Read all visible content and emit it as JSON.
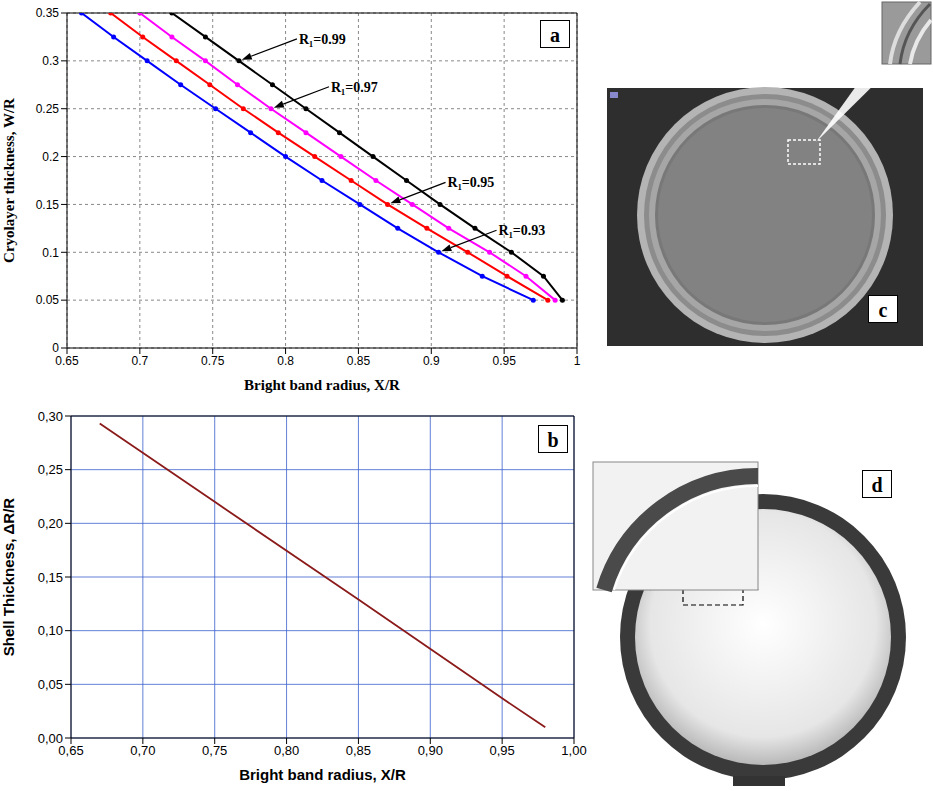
{
  "chart_data": [
    {
      "type": "line",
      "panel": "a",
      "xlabel": "Bright band radius, X/R",
      "ylabel": "Cryolayer thickness,  W/R",
      "xlim": [
        0.65,
        1
      ],
      "xticks": [
        0.65,
        0.7,
        0.75,
        0.8,
        0.85,
        0.9,
        0.95,
        1
      ],
      "ylim": [
        0,
        0.35
      ],
      "yticks": [
        0,
        0.05,
        0.1,
        0.15,
        0.2,
        0.25,
        0.3,
        0.35
      ],
      "grid": true,
      "marker": "circle",
      "series": [
        {
          "name": "R₁=0.99",
          "color": "#000000",
          "x": [
            0.722,
            0.745,
            0.768,
            0.791,
            0.814,
            0.837,
            0.86,
            0.883,
            0.906,
            0.93,
            0.955,
            0.977,
            0.99
          ],
          "values": [
            0.35,
            0.325,
            0.3,
            0.275,
            0.25,
            0.225,
            0.2,
            0.175,
            0.15,
            0.125,
            0.1,
            0.075,
            0.05
          ]
        },
        {
          "name": "R₁=0.97",
          "color": "#ff00ff",
          "x": [
            0.7,
            0.722,
            0.745,
            0.767,
            0.79,
            0.814,
            0.838,
            0.862,
            0.887,
            0.912,
            0.94,
            0.965,
            0.985
          ],
          "values": [
            0.35,
            0.325,
            0.3,
            0.275,
            0.25,
            0.225,
            0.2,
            0.175,
            0.15,
            0.125,
            0.1,
            0.075,
            0.05
          ]
        },
        {
          "name": "R₁=0.95",
          "color": "#ff0000",
          "x": [
            0.68,
            0.702,
            0.725,
            0.748,
            0.771,
            0.795,
            0.82,
            0.845,
            0.87,
            0.897,
            0.925,
            0.952,
            0.98
          ],
          "values": [
            0.35,
            0.325,
            0.3,
            0.275,
            0.25,
            0.225,
            0.2,
            0.175,
            0.15,
            0.125,
            0.1,
            0.075,
            0.05
          ]
        },
        {
          "name": "R₁=0.93",
          "color": "#0000ff",
          "x": [
            0.66,
            0.682,
            0.705,
            0.728,
            0.752,
            0.776,
            0.8,
            0.825,
            0.851,
            0.877,
            0.905,
            0.935,
            0.97
          ],
          "values": [
            0.35,
            0.325,
            0.3,
            0.275,
            0.25,
            0.225,
            0.2,
            0.175,
            0.15,
            0.125,
            0.1,
            0.075,
            0.05
          ]
        }
      ]
    },
    {
      "type": "line",
      "panel": "b",
      "xlabel": "Bright band radius, X/R",
      "ylabel": "Shell Thickness, ΔR/R",
      "xlim": [
        0.65,
        1
      ],
      "xticks": [
        {
          "value": 0.65,
          "label": "0,65"
        },
        {
          "value": 0.7,
          "label": "0,70"
        },
        {
          "value": 0.75,
          "label": "0,75"
        },
        {
          "value": 0.8,
          "label": "0,80"
        },
        {
          "value": 0.85,
          "label": "0,85"
        },
        {
          "value": 0.9,
          "label": "0,90"
        },
        {
          "value": 0.95,
          "label": "0,95"
        },
        {
          "value": 1,
          "label": "1,00"
        }
      ],
      "ylim": [
        0,
        0.3
      ],
      "yticks": [
        {
          "value": 0,
          "label": "0,00"
        },
        {
          "value": 0.05,
          "label": "0,05"
        },
        {
          "value": 0.1,
          "label": "0,10"
        },
        {
          "value": 0.15,
          "label": "0,15"
        },
        {
          "value": 0.2,
          "label": "0,20"
        },
        {
          "value": 0.25,
          "label": "0,25"
        },
        {
          "value": 0.3,
          "label": "0,30"
        }
      ],
      "grid": true,
      "color": "#8b1a1a",
      "x": [
        0.67,
        0.75,
        0.85,
        0.95,
        0.98
      ],
      "values": [
        0.293,
        0.22,
        0.129,
        0.037,
        0.01
      ]
    }
  ],
  "images": [
    {
      "panel": "c"
    },
    {
      "panel": "d"
    }
  ]
}
